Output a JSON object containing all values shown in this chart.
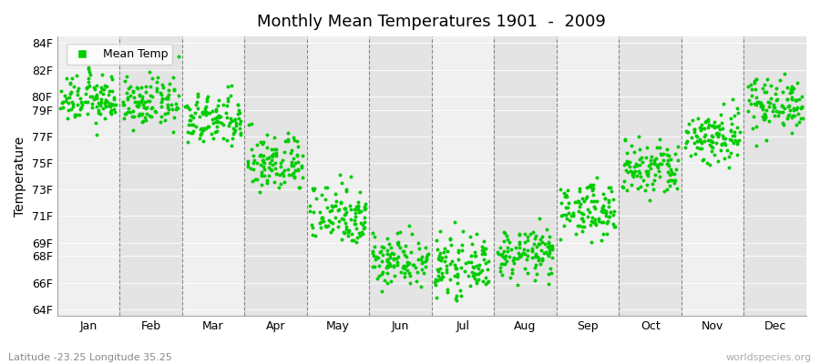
{
  "title": "Monthly Mean Temperatures 1901  -  2009",
  "ylabel": "Temperature",
  "xlabel_months": [
    "Jan",
    "Feb",
    "Mar",
    "Apr",
    "May",
    "Jun",
    "Jul",
    "Aug",
    "Sep",
    "Oct",
    "Nov",
    "Dec"
  ],
  "ytick_labels": [
    "64F",
    "66F",
    "68F",
    "69F",
    "71F",
    "73F",
    "75F",
    "77F",
    "79F",
    "80F",
    "82F",
    "84F"
  ],
  "ytick_values": [
    64,
    66,
    68,
    69,
    71,
    73,
    75,
    77,
    79,
    80,
    82,
    84
  ],
  "ylim": [
    63.5,
    84.5
  ],
  "dot_color": "#00CC00",
  "dot_size": 8,
  "background_color": "#ffffff",
  "subtitle": "Latitude -23.25 Longitude 35.25",
  "watermark": "worldspecies.org",
  "legend_label": "Mean Temp",
  "monthly_means": [
    79.8,
    79.5,
    78.2,
    75.0,
    71.2,
    67.8,
    67.2,
    68.2,
    71.5,
    74.5,
    77.0,
    79.5
  ],
  "monthly_stds": [
    0.9,
    0.9,
    1.0,
    1.1,
    1.2,
    1.0,
    1.0,
    0.9,
    1.0,
    1.1,
    1.1,
    1.0
  ],
  "num_years": 109,
  "band_light": "#f0f0f0",
  "band_dark": "#e4e4e4",
  "dashed_line_color": "#888888"
}
